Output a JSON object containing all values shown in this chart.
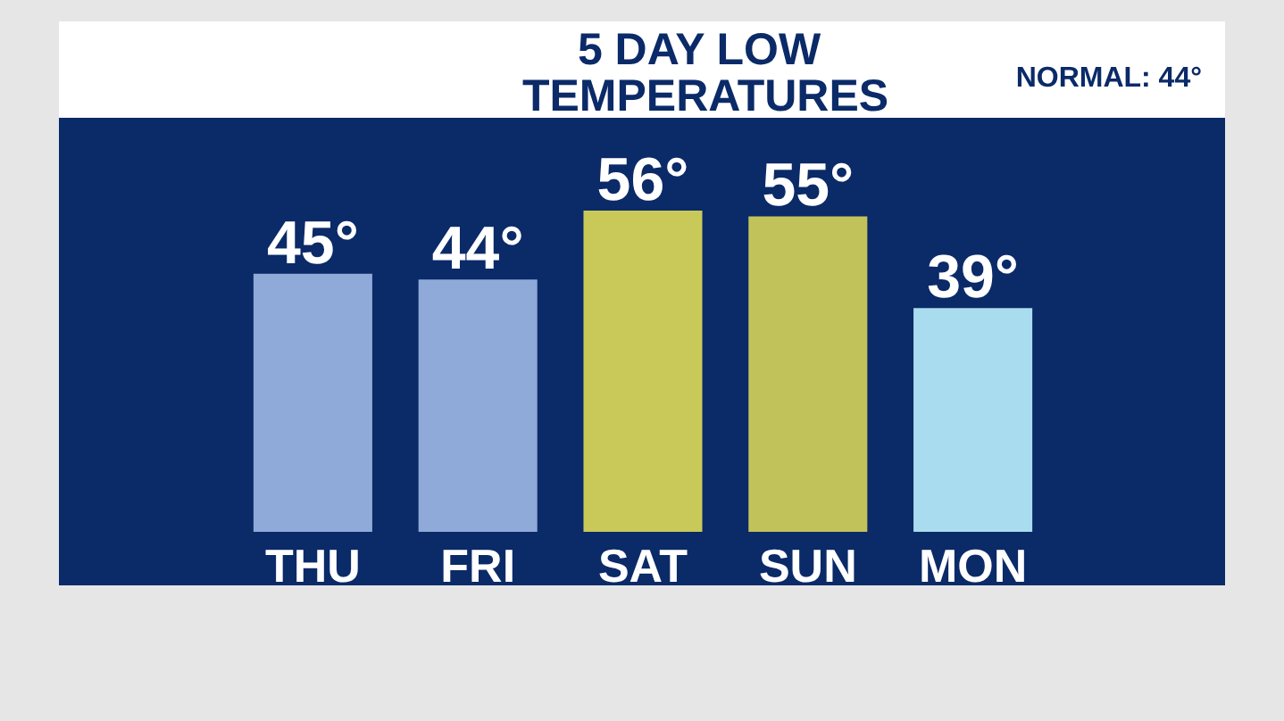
{
  "chart_data": {
    "type": "bar",
    "title": "5 DAY LOW TEMPERATURES",
    "annotations": [
      "NORMAL: 44°"
    ],
    "categories": [
      "THU",
      "FRI",
      "SAT",
      "SUN",
      "MON"
    ],
    "values": [
      45,
      44,
      56,
      55,
      39
    ],
    "value_labels": [
      "45°",
      "44°",
      "56°",
      "55°",
      "39°"
    ],
    "colors": [
      "#8fa9d8",
      "#8fa9d8",
      "#c9c95a",
      "#c2c25a",
      "#a9dcef"
    ]
  }
}
